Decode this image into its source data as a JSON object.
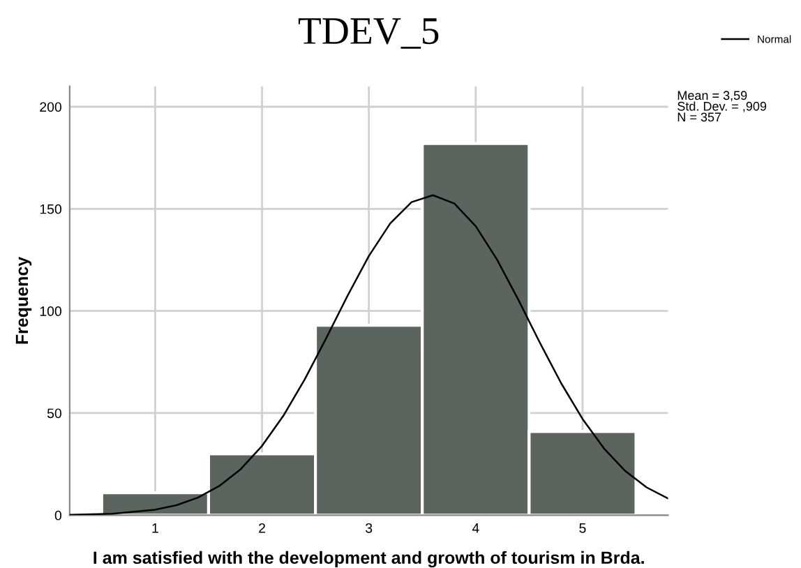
{
  "chart_data": {
    "type": "histogram",
    "title": "TDEV_5",
    "xlabel": "I am satisfied with the development and growth of tourism in Brda.",
    "ylabel": "Frequency",
    "bins": [
      0.5,
      1.5,
      2.5,
      3.5,
      4.5,
      5.5
    ],
    "values": [
      11,
      30,
      93,
      182,
      41
    ],
    "color": "#5b645e",
    "series": [
      {
        "name": "Normal",
        "type": "line",
        "color": "#000000",
        "x": [
          0.2,
          0.6,
          1.0,
          1.2,
          1.4,
          1.6,
          1.8,
          2.0,
          2.2,
          2.4,
          2.6,
          2.8,
          3.0,
          3.2,
          3.4,
          3.6,
          3.8,
          4.0,
          4.2,
          4.4,
          4.6,
          4.8,
          5.0,
          5.2,
          5.4,
          5.6,
          5.8
        ],
        "values": [
          0.2,
          0.7,
          2.7,
          4.9,
          8.6,
          14.3,
          22.5,
          33.9,
          48.7,
          66.5,
          86.6,
          107.4,
          126.9,
          142.9,
          153.3,
          156.7,
          152.6,
          141.5,
          125.1,
          105.4,
          84.5,
          64.6,
          47.1,
          32.7,
          21.6,
          13.6,
          8.2
        ]
      }
    ],
    "annotations": [
      "Mean = 3,59\nStd. Dev. = ,909\nN = 357"
    ],
    "xlim": [
      0.2,
      5.8
    ],
    "ylim": [
      0,
      210
    ],
    "xticks": [
      1,
      2,
      3,
      4,
      5
    ],
    "yticks": [
      0,
      50,
      100,
      150,
      200
    ],
    "grid": true,
    "legend": "top right",
    "marker": "none",
    "line_style": "solid"
  }
}
